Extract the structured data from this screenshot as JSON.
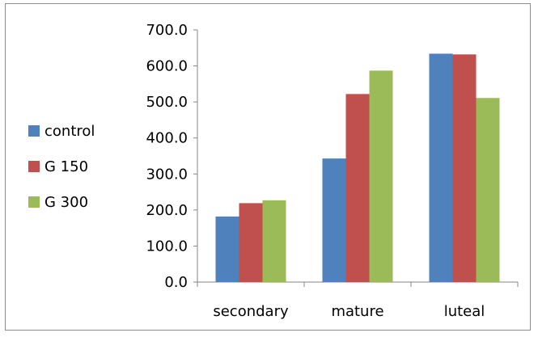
{
  "chart_data": {
    "type": "bar",
    "categories": [
      "secondary",
      "mature",
      "luteal"
    ],
    "series": [
      {
        "name": "control",
        "color": "#4f81bd",
        "values": [
          182,
          343,
          634
        ]
      },
      {
        "name": "G 150",
        "color": "#c0504d",
        "values": [
          219,
          522,
          632
        ]
      },
      {
        "name": "G 300",
        "color": "#9bbb59",
        "values": [
          227,
          587,
          511
        ]
      }
    ],
    "yticks": [
      "0.0",
      "100.0",
      "200.0",
      "300.0",
      "400.0",
      "500.0",
      "600.0",
      "700.0"
    ],
    "ylim": [
      0,
      700
    ],
    "grid": false,
    "legend_position": "left"
  }
}
